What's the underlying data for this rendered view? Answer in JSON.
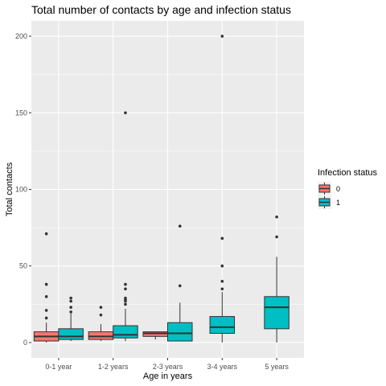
{
  "chart_data": {
    "type": "boxplot",
    "title": "Total number of contacts by age and infection status",
    "xlabel": "Age in years",
    "ylabel": "Total contacts",
    "ylim": [
      -10,
      210
    ],
    "yticks": [
      0,
      50,
      100,
      150,
      200
    ],
    "grid": true,
    "legend": {
      "title": "Infection status",
      "placement": "right",
      "entries": [
        {
          "label": "0",
          "color": "#F8766D"
        },
        {
          "label": "1",
          "color": "#00BFC4"
        }
      ]
    },
    "categories": [
      "0-1 year",
      "1-2 years",
      "2-3 years",
      "3-4 years",
      "5 years"
    ],
    "groups": [
      {
        "category": "0-1 year",
        "boxes": [
          {
            "status": "0",
            "min": 0,
            "q1": 1,
            "median": 4,
            "q3": 7,
            "max": 13,
            "outliers": [
              71,
              38,
              30,
              21,
              16
            ]
          },
          {
            "status": "1",
            "min": 1,
            "q1": 2,
            "median": 4,
            "q3": 9,
            "max": 19,
            "outliers": [
              29,
              27,
              23,
              20
            ]
          }
        ]
      },
      {
        "category": "1-2 years",
        "boxes": [
          {
            "status": "0",
            "min": 1,
            "q1": 2,
            "median": 4,
            "q3": 7,
            "max": 12,
            "outliers": [
              23,
              18
            ]
          },
          {
            "status": "1",
            "min": 1,
            "q1": 3,
            "median": 5,
            "q3": 11,
            "max": 22,
            "outliers": [
              150,
              38,
              35,
              29,
              28,
              27,
              25
            ]
          }
        ]
      },
      {
        "category": "2-3 years",
        "boxes": [
          {
            "status": "0",
            "min": 2,
            "q1": 4,
            "median": 6,
            "q3": 7,
            "max": 7,
            "outliers": []
          },
          {
            "status": "1",
            "min": 1,
            "q1": 1,
            "median": 6,
            "q3": 13,
            "max": 26,
            "outliers": [
              76,
              37
            ]
          }
        ]
      },
      {
        "category": "3-4 years",
        "boxes": [
          {
            "status": "1",
            "min": 0,
            "q1": 6,
            "median": 10,
            "q3": 17,
            "max": 33,
            "outliers": [
              200,
              68,
              50,
              40,
              35
            ]
          }
        ]
      },
      {
        "category": "5 years",
        "boxes": [
          {
            "status": "1",
            "min": 0,
            "q1": 9,
            "median": 23,
            "q3": 30,
            "max": 56,
            "outliers": [
              82,
              69
            ]
          }
        ]
      }
    ]
  }
}
